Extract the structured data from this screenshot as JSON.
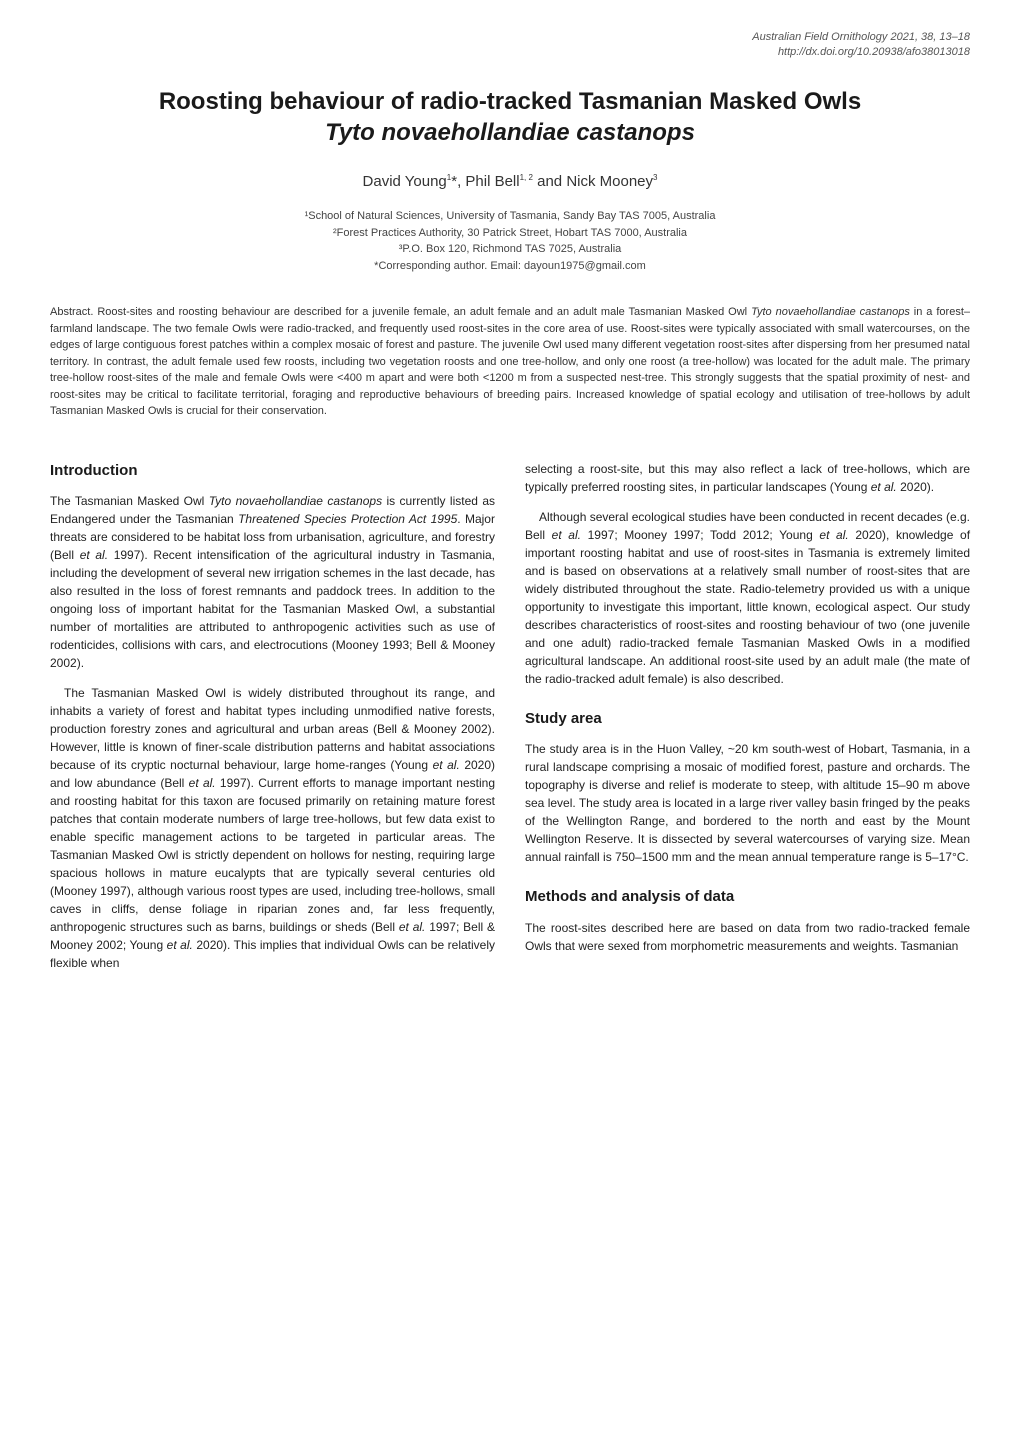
{
  "header": {
    "journal_line": "Australian Field Ornithology 2021, 38, 13–18",
    "doi_line": "http://dx.doi.org/10.20938/afo38013018"
  },
  "title": {
    "main": "Roosting behaviour of radio-tracked Tasmanian Masked Owls",
    "species": "Tyto novaehollandiae castanops"
  },
  "authors_html": "David Young<sup>1</sup>*, Phil Bell<sup>1, 2</sup> and Nick Mooney<sup>3</sup>",
  "affiliations": {
    "a1": "¹School of Natural Sciences, University of Tasmania, Sandy Bay TAS 7005, Australia",
    "a2": "²Forest Practices Authority, 30 Patrick Street, Hobart TAS 7000, Australia",
    "a3": "³P.O. Box 120, Richmond TAS 7025, Australia",
    "corresponding": "*Corresponding author. Email: dayoun1975@gmail.com"
  },
  "abstract": {
    "label": "Abstract.",
    "text_html": " Roost-sites and roosting behaviour are described for a juvenile female, an adult female and an adult male Tasmanian Masked Owl <em>Tyto novaehollandiae castanops</em> in a forest–farmland landscape. The two female Owls were radio-tracked, and frequently used roost-sites in the core area of use. Roost-sites were typically associated with small watercourses, on the edges of large contiguous forest patches within a complex mosaic of forest and pasture. The juvenile Owl used many different vegetation roost-sites after dispersing from her presumed natal territory. In contrast, the adult female used few roosts, including two vegetation roosts and one tree-hollow, and only one roost (a tree-hollow) was located for the adult male. The primary tree-hollow roost-sites of the male and female Owls were <400 m apart and were both <1200 m from a suspected nest-tree. This strongly suggests that the spatial proximity of nest- and roost-sites may be critical to facilitate territorial, foraging and reproductive behaviours of breeding pairs. Increased knowledge of spatial ecology and utilisation of tree-hollows by adult Tasmanian Masked Owls is crucial for their conservation."
  },
  "sections": {
    "introduction": {
      "heading": "Introduction",
      "p1_html": "The Tasmanian Masked Owl <em>Tyto novaehollandiae castanops</em> is currently listed as Endangered under the Tasmanian <em>Threatened Species Protection Act 1995</em>. Major threats are considered to be habitat loss from urbanisation, agriculture, and forestry (Bell <em>et al.</em> 1997). Recent intensification of the agricultural industry in Tasmania, including the development of several new irrigation schemes in the last decade, has also resulted in the loss of forest remnants and paddock trees. In addition to the ongoing loss of important habitat for the Tasmanian Masked Owl, a substantial number of mortalities are attributed to anthropogenic activities such as use of rodenticides, collisions with cars, and electrocutions (Mooney 1993; Bell & Mooney 2002).",
      "p2_html": "The Tasmanian Masked Owl is widely distributed throughout its range, and inhabits a variety of forest and habitat types including unmodified native forests, production forestry zones and agricultural and urban areas (Bell & Mooney 2002). However, little is known of finer-scale distribution patterns and habitat associations because of its cryptic nocturnal behaviour, large home-ranges (Young <em>et al.</em> 2020) and low abundance (Bell <em>et al.</em> 1997). Current efforts to manage important nesting and roosting habitat for this taxon are focused primarily on retaining mature forest patches that contain moderate numbers of large tree-hollows, but few data exist to enable specific management actions to be targeted in particular areas. The Tasmanian Masked Owl is strictly dependent on hollows for nesting, requiring large spacious hollows in mature eucalypts that are typically several centuries old (Mooney 1997), although various roost types are used, including tree-hollows, small caves in cliffs, dense foliage in riparian zones and, far less frequently, anthropogenic structures such as barns, buildings or sheds (Bell <em>et al.</em> 1997; Bell & Mooney 2002; Young <em>et al.</em> 2020). This implies that individual Owls can be relatively flexible when",
      "p3_html": "selecting a roost-site, but this may also reflect a lack of tree-hollows, which are typically preferred roosting sites, in particular landscapes (Young <em>et al.</em> 2020).",
      "p4_html": "Although several ecological studies have been conducted in recent decades (e.g. Bell <em>et al.</em> 1997; Mooney 1997; Todd 2012; Young <em>et al.</em> 2020), knowledge of important roosting habitat and use of roost-sites in Tasmania is extremely limited and is based on observations at a relatively small number of roost-sites that are widely distributed throughout the state. Radio-telemetry provided us with a unique opportunity to investigate this important, little known, ecological aspect. Our study describes characteristics of roost-sites and roosting behaviour of two (one juvenile and one adult) radio-tracked female Tasmanian Masked Owls in a modified agricultural landscape. An additional roost-site used by an adult male (the mate of the radio-tracked adult female) is also described."
    },
    "study_area": {
      "heading": "Study area",
      "p1_html": "The study area is in the Huon Valley, ~20 km south-west of Hobart, Tasmania, in a rural landscape comprising a mosaic of modified forest, pasture and orchards. The topography is diverse and relief is moderate to steep, with altitude 15–90 m above sea level. The study area is located in a large river valley basin fringed by the peaks of the Wellington Range, and bordered to the north and east by the Mount Wellington Reserve. It is dissected by several watercourses of varying size. Mean annual rainfall is 750–1500 mm and the mean annual temperature range is 5–17°C."
    },
    "methods": {
      "heading": "Methods and analysis of data",
      "p1_html": "The roost-sites described here are based on data from two radio-tracked female Owls that were sexed from morphometric measurements and weights. Tasmanian"
    }
  }
}
